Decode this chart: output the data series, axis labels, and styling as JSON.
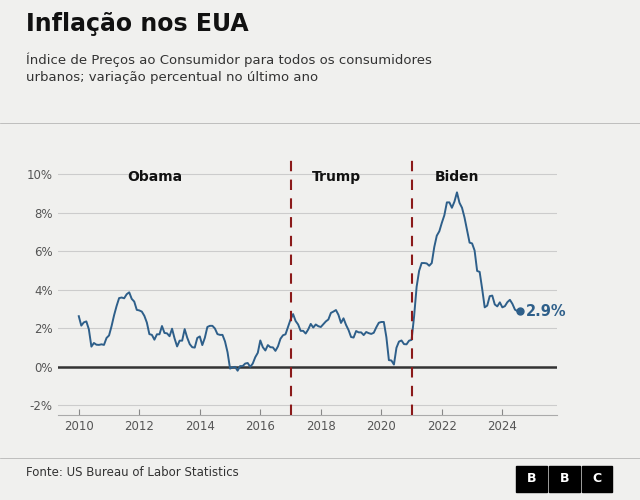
{
  "title": "Inflação nos EUA",
  "subtitle": "Índice de Preços ao Consumidor para todos os consumidores\nurbanos; variação percentual no último ano",
  "source": "Fonte: US Bureau of Labor Statistics",
  "line_color": "#2e5f8a",
  "zero_line_color": "#333333",
  "grid_color": "#cccccc",
  "dashed_line_color": "#8b1a1a",
  "background_color": "#f0f0ee",
  "plot_bg_color": "#f0f0ee",
  "label_color": "#111111",
  "annotation_value": "2.9%",
  "presidents": [
    {
      "name": "Obama",
      "x": 2012.5,
      "ha": "center"
    },
    {
      "name": "Trump",
      "x": 2018.5,
      "ha": "center"
    },
    {
      "name": "Biden",
      "x": 2022.5,
      "ha": "center"
    }
  ],
  "vlines": [
    2017.0,
    2021.0
  ],
  "ylim": [
    -2.5,
    11.0
  ],
  "yticks": [
    -2,
    0,
    2,
    4,
    6,
    8,
    10
  ],
  "ytick_labels": [
    "-2%",
    "0%",
    "2%",
    "4%",
    "6%",
    "8%",
    "10%"
  ],
  "xlim": [
    2009.3,
    2025.8
  ],
  "xticks": [
    2010,
    2012,
    2014,
    2016,
    2018,
    2020,
    2022,
    2024
  ],
  "data": {
    "dates": [
      2010.0,
      2010.083,
      2010.167,
      2010.25,
      2010.333,
      2010.417,
      2010.5,
      2010.583,
      2010.667,
      2010.75,
      2010.833,
      2010.917,
      2011.0,
      2011.083,
      2011.167,
      2011.25,
      2011.333,
      2011.417,
      2011.5,
      2011.583,
      2011.667,
      2011.75,
      2011.833,
      2011.917,
      2012.0,
      2012.083,
      2012.167,
      2012.25,
      2012.333,
      2012.417,
      2012.5,
      2012.583,
      2012.667,
      2012.75,
      2012.833,
      2012.917,
      2013.0,
      2013.083,
      2013.167,
      2013.25,
      2013.333,
      2013.417,
      2013.5,
      2013.583,
      2013.667,
      2013.75,
      2013.833,
      2013.917,
      2014.0,
      2014.083,
      2014.167,
      2014.25,
      2014.333,
      2014.417,
      2014.5,
      2014.583,
      2014.667,
      2014.75,
      2014.833,
      2014.917,
      2015.0,
      2015.083,
      2015.167,
      2015.25,
      2015.333,
      2015.417,
      2015.5,
      2015.583,
      2015.667,
      2015.75,
      2015.833,
      2015.917,
      2016.0,
      2016.083,
      2016.167,
      2016.25,
      2016.333,
      2016.417,
      2016.5,
      2016.583,
      2016.667,
      2016.75,
      2016.833,
      2016.917,
      2017.0,
      2017.083,
      2017.167,
      2017.25,
      2017.333,
      2017.417,
      2017.5,
      2017.583,
      2017.667,
      2017.75,
      2017.833,
      2017.917,
      2018.0,
      2018.083,
      2018.167,
      2018.25,
      2018.333,
      2018.417,
      2018.5,
      2018.583,
      2018.667,
      2018.75,
      2018.833,
      2018.917,
      2019.0,
      2019.083,
      2019.167,
      2019.25,
      2019.333,
      2019.417,
      2019.5,
      2019.583,
      2019.667,
      2019.75,
      2019.833,
      2019.917,
      2020.0,
      2020.083,
      2020.167,
      2020.25,
      2020.333,
      2020.417,
      2020.5,
      2020.583,
      2020.667,
      2020.75,
      2020.833,
      2020.917,
      2021.0,
      2021.083,
      2021.167,
      2021.25,
      2021.333,
      2021.417,
      2021.5,
      2021.583,
      2021.667,
      2021.75,
      2021.833,
      2021.917,
      2022.0,
      2022.083,
      2022.167,
      2022.25,
      2022.333,
      2022.417,
      2022.5,
      2022.583,
      2022.667,
      2022.75,
      2022.833,
      2022.917,
      2023.0,
      2023.083,
      2023.167,
      2023.25,
      2023.333,
      2023.417,
      2023.5,
      2023.583,
      2023.667,
      2023.75,
      2023.833,
      2023.917,
      2024.0,
      2024.083,
      2024.167,
      2024.25,
      2024.333,
      2024.417,
      2024.5,
      2024.583
    ],
    "values": [
      2.63,
      2.14,
      2.31,
      2.36,
      1.95,
      1.05,
      1.24,
      1.15,
      1.14,
      1.17,
      1.14,
      1.5,
      1.63,
      2.11,
      2.68,
      3.16,
      3.57,
      3.6,
      3.56,
      3.77,
      3.87,
      3.53,
      3.39,
      2.96,
      2.93,
      2.87,
      2.65,
      2.3,
      1.7,
      1.66,
      1.41,
      1.69,
      1.69,
      2.12,
      1.76,
      1.74,
      1.59,
      1.98,
      1.47,
      1.06,
      1.36,
      1.36,
      1.96,
      1.52,
      1.18,
      1.02,
      1.0,
      1.5,
      1.58,
      1.13,
      1.51,
      2.07,
      2.13,
      2.13,
      1.99,
      1.7,
      1.66,
      1.66,
      1.32,
      0.76,
      -0.09,
      -0.03,
      0.0,
      -0.2,
      0.04,
      0.04,
      0.17,
      0.2,
      0.0,
      0.17,
      0.5,
      0.73,
      1.37,
      1.02,
      0.85,
      1.13,
      1.02,
      1.01,
      0.83,
      1.06,
      1.46,
      1.64,
      1.69,
      2.07,
      2.46,
      2.74,
      2.38,
      2.2,
      1.87,
      1.87,
      1.73,
      1.94,
      2.23,
      2.04,
      2.2,
      2.11,
      2.07,
      2.21,
      2.36,
      2.46,
      2.8,
      2.87,
      2.95,
      2.7,
      2.28,
      2.52,
      2.18,
      1.91,
      1.55,
      1.52,
      1.86,
      1.79,
      1.79,
      1.65,
      1.81,
      1.75,
      1.71,
      1.77,
      2.05,
      2.29,
      2.33,
      2.33,
      1.54,
      0.35,
      0.33,
      0.12,
      0.99,
      1.31,
      1.37,
      1.18,
      1.17,
      1.36,
      1.4,
      2.62,
      4.16,
      4.99,
      5.39,
      5.39,
      5.37,
      5.25,
      5.39,
      6.22,
      6.81,
      7.04,
      7.48,
      7.87,
      8.54,
      8.54,
      8.26,
      8.58,
      9.06,
      8.52,
      8.26,
      7.75,
      7.11,
      6.45,
      6.41,
      6.04,
      4.98,
      4.93,
      4.05,
      3.09,
      3.18,
      3.67,
      3.7,
      3.24,
      3.14,
      3.35,
      3.09,
      3.15,
      3.36,
      3.48,
      3.27,
      2.97,
      2.89,
      2.9
    ]
  }
}
